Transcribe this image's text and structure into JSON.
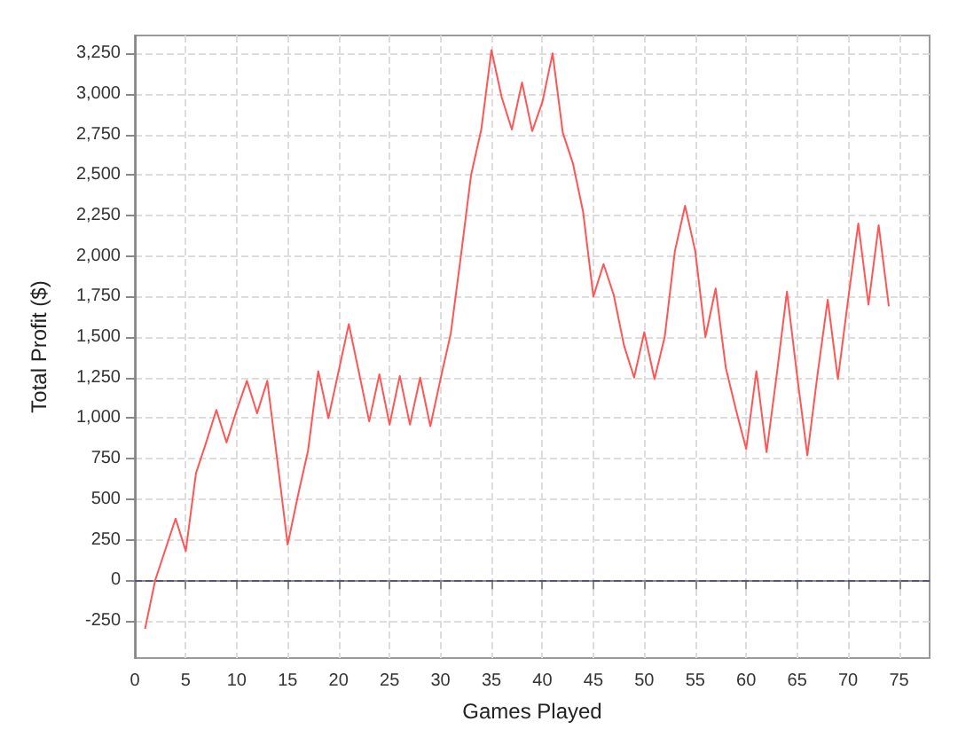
{
  "chart_data": {
    "type": "line",
    "xlabel": "Games Played",
    "ylabel": "Total Profit ($)",
    "x": [
      1,
      2,
      3,
      4,
      5,
      6,
      7,
      8,
      9,
      10,
      11,
      12,
      13,
      14,
      15,
      16,
      17,
      18,
      19,
      20,
      21,
      22,
      23,
      24,
      25,
      26,
      27,
      28,
      29,
      30,
      31,
      32,
      33,
      34,
      35,
      36,
      37,
      38,
      39,
      40,
      41,
      42,
      43,
      44,
      45,
      46,
      47,
      48,
      49,
      50,
      51,
      52,
      53,
      54,
      55,
      56,
      57,
      58,
      59,
      60,
      61,
      62,
      63,
      64,
      65,
      66,
      67,
      68,
      69,
      70,
      71,
      72,
      73,
      74
    ],
    "series": [
      {
        "color": "#ff5555",
        "values": [
          -300,
          0,
          190,
          380,
          180,
          660,
          850,
          1050,
          850,
          1050,
          1230,
          1030,
          1230,
          730,
          220,
          520,
          800,
          1290,
          1000,
          1290,
          1580,
          1280,
          980,
          1270,
          960,
          1260,
          960,
          1250,
          950,
          1240,
          1520,
          2000,
          2500,
          2780,
          3270,
          2980,
          2780,
          3070,
          2770,
          2950,
          3250,
          2760,
          2570,
          2270,
          1750,
          1950,
          1760,
          1450,
          1250,
          1530,
          1240,
          1500,
          2030,
          2310,
          2030,
          1500,
          1800,
          1310,
          1050,
          810,
          1290,
          790,
          1270,
          1780,
          1260,
          770,
          1270,
          1730,
          1240,
          1730,
          2200,
          1700,
          2190,
          1690
        ]
      }
    ],
    "xlim": [
      0,
      78
    ],
    "xticks": [
      0,
      5,
      10,
      15,
      20,
      25,
      30,
      35,
      40,
      45,
      50,
      55,
      60,
      65,
      70,
      75
    ],
    "ylim": [
      -480,
      3360
    ],
    "yticks": [
      -250,
      0,
      250,
      500,
      750,
      {
        "value": 1000,
        "label": "1,000"
      },
      {
        "value": 1250,
        "label": "1,250"
      },
      {
        "value": 1500,
        "label": "1,500"
      },
      {
        "value": 1750,
        "label": "1,750"
      },
      {
        "value": 2000,
        "label": "2,000"
      },
      {
        "value": 2250,
        "label": "2,250"
      },
      {
        "value": 2500,
        "label": "2,500"
      },
      {
        "value": 2750,
        "label": "2,750"
      },
      {
        "value": 3000,
        "label": "3,000"
      },
      {
        "value": 3250,
        "label": "3,250"
      }
    ],
    "grid": true,
    "marker": "none",
    "line_style": "solid",
    "ref_lines": [
      {
        "axis": "y",
        "value": 0,
        "color": "#555577",
        "line_style": "dashed"
      }
    ]
  }
}
